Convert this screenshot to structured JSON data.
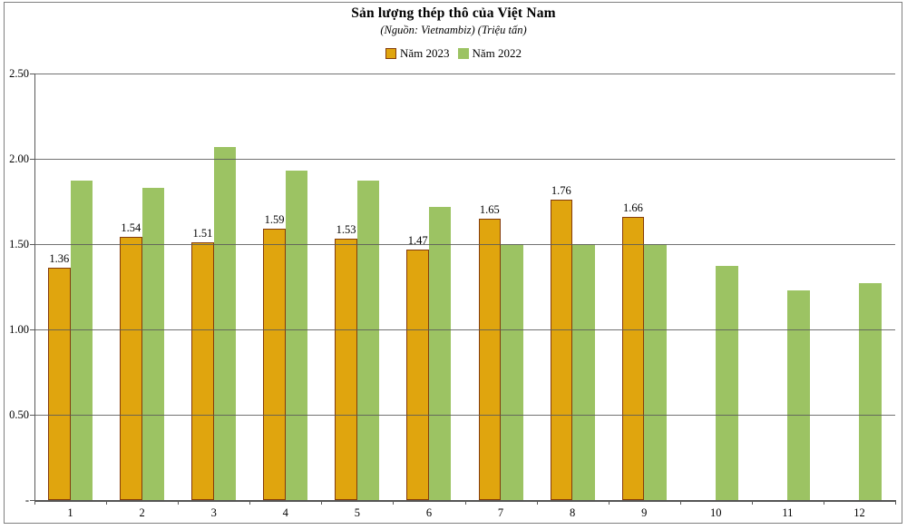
{
  "page": {
    "background": "#ffffff",
    "frame_border_color": "#7f7f7f"
  },
  "header": {
    "title": "Sản lượng thép thô của Việt Nam",
    "subtitle": "(Nguồn: Vietnambiz) (Triệu tấn)"
  },
  "legend": {
    "items": [
      {
        "label": "Năm 2023",
        "color": "#E0A50E",
        "border": "#843C0C"
      },
      {
        "label": "Năm 2022",
        "color": "#9CC363",
        "border": "#94BA58"
      }
    ]
  },
  "chart_data": {
    "type": "bar",
    "title": "Sản lượng thép thô của Việt Nam",
    "subtitle": "(Nguồn: Vietnambiz) (Triệu tấn)",
    "categories": [
      "1",
      "2",
      "3",
      "4",
      "5",
      "6",
      "7",
      "8",
      "9",
      "10",
      "11",
      "12"
    ],
    "series": [
      {
        "name": "Năm 2023",
        "color": "#E0A50E",
        "border_color": "#843C0C",
        "values": [
          1.36,
          1.54,
          1.51,
          1.59,
          1.53,
          1.47,
          1.65,
          1.76,
          1.66,
          null,
          null,
          null
        ],
        "value_labels": [
          "1.36",
          "1.54",
          "1.51",
          "1.59",
          "1.53",
          "1.47",
          "1.65",
          "1.76",
          "1.66"
        ],
        "data_labels": true
      },
      {
        "name": "Năm 2022",
        "color": "#9CC363",
        "border_color": "#94BA58",
        "values": [
          1.87,
          1.83,
          2.07,
          1.93,
          1.87,
          1.72,
          1.5,
          1.5,
          1.5,
          1.37,
          1.23,
          1.27
        ],
        "data_labels": false
      }
    ],
    "ylim": [
      0,
      2.5
    ],
    "y_ticks": [
      {
        "value": 0,
        "label": "-"
      },
      {
        "value": 0.5,
        "label": "0.50"
      },
      {
        "value": 1,
        "label": "1.00"
      },
      {
        "value": 1.5,
        "label": "1.50"
      },
      {
        "value": 2,
        "label": "2.00"
      },
      {
        "value": 2.5,
        "label": "2.50"
      }
    ],
    "grid": true,
    "gridlines_over_bars": true,
    "legend_position": "top",
    "gridline_color": "#595959",
    "axis_color": "#595959",
    "label_color": "#000000"
  }
}
